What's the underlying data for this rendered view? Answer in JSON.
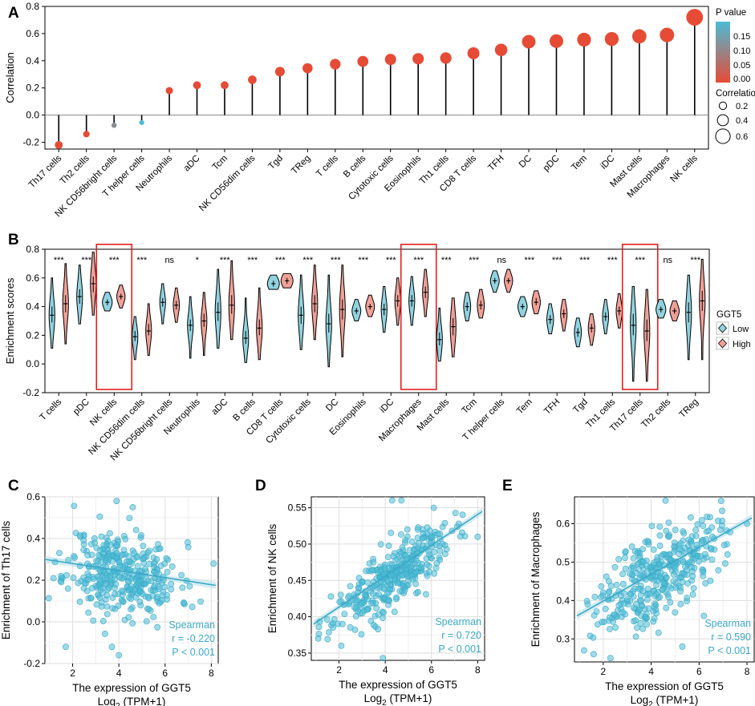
{
  "figure": {
    "panel_letters": [
      "A",
      "B",
      "C",
      "D",
      "E"
    ]
  },
  "chart_data": [
    {
      "panel": "A",
      "type": "lollipop",
      "ylabel": "Correlation",
      "ylim": [
        -0.25,
        0.8
      ],
      "yticks": [
        "-0.2",
        "0.0",
        "0.2",
        "0.4",
        "0.6",
        "0.8"
      ],
      "categories": [
        "Th17 cells",
        "Th2 cells",
        "NK CD56bright cells",
        "T helper cells",
        "Neutrophils",
        "aDC",
        "Tcm",
        "NK CD56dim cells",
        "Tgd",
        "TReg",
        "T cells",
        "B cells",
        "Cytotoxic cells",
        "Eosinophils",
        "Th1 cells",
        "CD8 T cells",
        "TFH",
        "DC",
        "pDC",
        "Tem",
        "iDC",
        "Mast cells",
        "Macrophages",
        "NK cells"
      ],
      "values": [
        -0.22,
        -0.14,
        -0.075,
        -0.055,
        0.18,
        0.22,
        0.22,
        0.26,
        0.32,
        0.345,
        0.375,
        0.395,
        0.41,
        0.415,
        0.42,
        0.455,
        0.48,
        0.54,
        0.545,
        0.555,
        0.56,
        0.58,
        0.59,
        0.72
      ],
      "pvalues": [
        0.0,
        0.0,
        0.12,
        0.2,
        0.0,
        0.0,
        0.0,
        0.0,
        0.0,
        0.0,
        0.0,
        0.0,
        0.0,
        0.0,
        0.0,
        0.0,
        0.0,
        0.0,
        0.0,
        0.0,
        0.0,
        0.0,
        0.0,
        0.0
      ],
      "legend_pvalue": {
        "title": "P value",
        "ticks": [
          "0.15",
          "0.10",
          "0.05",
          "0.00"
        ],
        "colors": {
          "low": "#E64B35",
          "high": "#4DBBD5"
        }
      },
      "legend_size": {
        "title": "Correlation",
        "ticks": [
          "0.2",
          "0.4",
          "0.6"
        ]
      }
    },
    {
      "panel": "B",
      "type": "violin",
      "ylabel": "Enrichment scores",
      "ylim": [
        -0.2,
        0.8
      ],
      "yticks": [
        "-0.2",
        "0.0",
        "0.2",
        "0.4",
        "0.6",
        "0.8"
      ],
      "legend": {
        "title": "GGT5",
        "items": [
          "Low",
          "High"
        ],
        "colors": [
          "#8FD3E0",
          "#F0A097"
        ]
      },
      "highlighted": [
        "NK cells",
        "Macrophages",
        "Th17 cells"
      ],
      "categories": [
        {
          "name": "T cells",
          "sig": "***",
          "low": {
            "median": 0.34,
            "q1": 0.29,
            "q3": 0.4,
            "min": 0.11,
            "max": 0.6
          },
          "high": {
            "median": 0.42,
            "q1": 0.36,
            "q3": 0.48,
            "min": 0.14,
            "max": 0.7
          }
        },
        {
          "name": "pDC",
          "sig": "***",
          "low": {
            "median": 0.47,
            "q1": 0.42,
            "q3": 0.52,
            "min": 0.28,
            "max": 0.69
          },
          "high": {
            "median": 0.56,
            "q1": 0.5,
            "q3": 0.61,
            "min": 0.34,
            "max": 0.78
          }
        },
        {
          "name": "NK cells",
          "sig": "***",
          "low": {
            "median": 0.43,
            "q1": 0.41,
            "q3": 0.45,
            "min": 0.37,
            "max": 0.5
          },
          "high": {
            "median": 0.47,
            "q1": 0.45,
            "q3": 0.49,
            "min": 0.39,
            "max": 0.55
          }
        },
        {
          "name": "NK CD56dim cells",
          "sig": "***",
          "low": {
            "median": 0.19,
            "q1": 0.16,
            "q3": 0.23,
            "min": 0.03,
            "max": 0.33
          },
          "high": {
            "median": 0.23,
            "q1": 0.2,
            "q3": 0.28,
            "min": 0.06,
            "max": 0.42
          }
        },
        {
          "name": "NK CD56bright cells",
          "sig": "ns",
          "low": {
            "median": 0.43,
            "q1": 0.4,
            "q3": 0.46,
            "min": 0.28,
            "max": 0.56
          },
          "high": {
            "median": 0.41,
            "q1": 0.38,
            "q3": 0.44,
            "min": 0.29,
            "max": 0.53
          }
        },
        {
          "name": "Neutrophils",
          "sig": "*",
          "low": {
            "median": 0.27,
            "q1": 0.23,
            "q3": 0.31,
            "min": 0.04,
            "max": 0.47
          },
          "high": {
            "median": 0.3,
            "q1": 0.26,
            "q3": 0.35,
            "min": 0.06,
            "max": 0.5
          }
        },
        {
          "name": "aDC",
          "sig": "***",
          "low": {
            "median": 0.36,
            "q1": 0.3,
            "q3": 0.43,
            "min": 0.11,
            "max": 0.66
          },
          "high": {
            "median": 0.41,
            "q1": 0.35,
            "q3": 0.48,
            "min": 0.17,
            "max": 0.72
          }
        },
        {
          "name": "B cells",
          "sig": "***",
          "low": {
            "median": 0.18,
            "q1": 0.14,
            "q3": 0.23,
            "min": 0.01,
            "max": 0.46
          },
          "high": {
            "median": 0.25,
            "q1": 0.2,
            "q3": 0.31,
            "min": 0.03,
            "max": 0.53
          }
        },
        {
          "name": "CD8 T cells",
          "sig": "***",
          "low": {
            "median": 0.56,
            "q1": 0.54,
            "q3": 0.58,
            "min": 0.52,
            "max": 0.62
          },
          "high": {
            "median": 0.58,
            "q1": 0.56,
            "q3": 0.6,
            "min": 0.53,
            "max": 0.63
          }
        },
        {
          "name": "Cytotoxic cells",
          "sig": "***",
          "low": {
            "median": 0.34,
            "q1": 0.28,
            "q3": 0.4,
            "min": 0.1,
            "max": 0.62
          },
          "high": {
            "median": 0.42,
            "q1": 0.36,
            "q3": 0.48,
            "min": 0.17,
            "max": 0.69
          }
        },
        {
          "name": "DC",
          "sig": "***",
          "low": {
            "median": 0.28,
            "q1": 0.22,
            "q3": 0.35,
            "min": -0.02,
            "max": 0.62
          },
          "high": {
            "median": 0.38,
            "q1": 0.31,
            "q3": 0.45,
            "min": 0.05,
            "max": 0.69
          }
        },
        {
          "name": "Eosinophils",
          "sig": "***",
          "low": {
            "median": 0.37,
            "q1": 0.35,
            "q3": 0.39,
            "min": 0.3,
            "max": 0.45
          },
          "high": {
            "median": 0.4,
            "q1": 0.38,
            "q3": 0.42,
            "min": 0.33,
            "max": 0.48
          }
        },
        {
          "name": "iDC",
          "sig": "***",
          "low": {
            "median": 0.38,
            "q1": 0.34,
            "q3": 0.42,
            "min": 0.22,
            "max": 0.54
          },
          "high": {
            "median": 0.44,
            "q1": 0.4,
            "q3": 0.48,
            "min": 0.27,
            "max": 0.6
          }
        },
        {
          "name": "Macrophages",
          "sig": "***",
          "low": {
            "median": 0.44,
            "q1": 0.4,
            "q3": 0.48,
            "min": 0.27,
            "max": 0.61
          },
          "high": {
            "median": 0.5,
            "q1": 0.46,
            "q3": 0.54,
            "min": 0.33,
            "max": 0.66
          }
        },
        {
          "name": "Mast cells",
          "sig": "***",
          "low": {
            "median": 0.17,
            "q1": 0.13,
            "q3": 0.22,
            "min": 0.02,
            "max": 0.39
          },
          "high": {
            "median": 0.26,
            "q1": 0.2,
            "q3": 0.32,
            "min": 0.05,
            "max": 0.46
          }
        },
        {
          "name": "Tcm",
          "sig": "***",
          "low": {
            "median": 0.4,
            "q1": 0.37,
            "q3": 0.43,
            "min": 0.3,
            "max": 0.5
          },
          "high": {
            "median": 0.41,
            "q1": 0.38,
            "q3": 0.44,
            "min": 0.32,
            "max": 0.52
          }
        },
        {
          "name": "T helper cells",
          "sig": "ns",
          "low": {
            "median": 0.58,
            "q1": 0.56,
            "q3": 0.6,
            "min": 0.5,
            "max": 0.65
          },
          "high": {
            "median": 0.58,
            "q1": 0.56,
            "q3": 0.6,
            "min": 0.5,
            "max": 0.66
          }
        },
        {
          "name": "Tem",
          "sig": "***",
          "low": {
            "median": 0.4,
            "q1": 0.38,
            "q3": 0.42,
            "min": 0.33,
            "max": 0.47
          },
          "high": {
            "median": 0.43,
            "q1": 0.41,
            "q3": 0.46,
            "min": 0.35,
            "max": 0.51
          }
        },
        {
          "name": "TFH",
          "sig": "***",
          "low": {
            "median": 0.31,
            "q1": 0.28,
            "q3": 0.34,
            "min": 0.21,
            "max": 0.42
          },
          "high": {
            "median": 0.35,
            "q1": 0.32,
            "q3": 0.38,
            "min": 0.23,
            "max": 0.45
          }
        },
        {
          "name": "Tgd",
          "sig": "***",
          "low": {
            "median": 0.22,
            "q1": 0.19,
            "q3": 0.25,
            "min": 0.12,
            "max": 0.32
          },
          "high": {
            "median": 0.25,
            "q1": 0.22,
            "q3": 0.28,
            "min": 0.13,
            "max": 0.35
          }
        },
        {
          "name": "Th1 cells",
          "sig": "***",
          "low": {
            "median": 0.33,
            "q1": 0.3,
            "q3": 0.36,
            "min": 0.21,
            "max": 0.45
          },
          "high": {
            "median": 0.37,
            "q1": 0.34,
            "q3": 0.4,
            "min": 0.25,
            "max": 0.49
          }
        },
        {
          "name": "Th17 cells",
          "sig": "***",
          "low": {
            "median": 0.27,
            "q1": 0.2,
            "q3": 0.35,
            "min": -0.12,
            "max": 0.54
          },
          "high": {
            "median": 0.23,
            "q1": 0.16,
            "q3": 0.31,
            "min": -0.12,
            "max": 0.52
          }
        },
        {
          "name": "Th2 cells",
          "sig": "ns",
          "low": {
            "median": 0.38,
            "q1": 0.36,
            "q3": 0.4,
            "min": 0.32,
            "max": 0.45
          },
          "high": {
            "median": 0.37,
            "q1": 0.35,
            "q3": 0.39,
            "min": 0.3,
            "max": 0.44
          }
        },
        {
          "name": "TReg",
          "sig": "***",
          "low": {
            "median": 0.36,
            "q1": 0.29,
            "q3": 0.43,
            "min": 0.03,
            "max": 0.62
          },
          "high": {
            "median": 0.44,
            "q1": 0.37,
            "q3": 0.51,
            "min": 0.03,
            "max": 0.73
          }
        }
      ]
    },
    {
      "panel": "C",
      "type": "scatter",
      "xlabel": "The expression of GGT5",
      "xlabel2_prefix": "Log",
      "xlabel2_sub": "2",
      "xlabel2_suffix": " (TPM+1)",
      "ylabel": "Enrichment of Th17 cells",
      "xlim": [
        0.8,
        8.3
      ],
      "ylim": [
        -0.2,
        0.6
      ],
      "xticks": [
        2,
        4,
        6,
        8
      ],
      "yticks": [
        -0.2,
        0.0,
        0.2,
        0.4,
        0.6
      ],
      "ytick_labels": [
        "-0.2",
        "0.0",
        "0.2",
        "0.4",
        "0.6"
      ],
      "stats": [
        "Spearman",
        "r = -0.220",
        "P < 0.001"
      ],
      "fit": {
        "x1": 0.8,
        "y1": 0.3,
        "x2": 8.2,
        "y2": 0.175
      },
      "n_points": 360,
      "x_center": 4.2,
      "x_sd": 1.2,
      "y_center": 0.23,
      "y_sd": 0.1,
      "slope": -0.017,
      "seed": 11,
      "outliers": [
        [
          3.9,
          0.58
        ],
        [
          4.6,
          0.55
        ],
        [
          8.1,
          0.28
        ],
        [
          1.5,
          0.22
        ],
        [
          1.7,
          -0.12
        ],
        [
          3.7,
          -0.12
        ],
        [
          4.0,
          -0.16
        ]
      ]
    },
    {
      "panel": "D",
      "type": "scatter",
      "xlabel": "The expression of GGT5",
      "xlabel2_prefix": "Log",
      "xlabel2_sub": "2",
      "xlabel2_suffix": " (TPM+1)",
      "ylabel": "Enrichment of NK cells",
      "xlim": [
        0.8,
        8.3
      ],
      "ylim": [
        0.34,
        0.565
      ],
      "xticks": [
        2,
        4,
        6,
        8
      ],
      "yticks": [
        0.35,
        0.4,
        0.45,
        0.5,
        0.55
      ],
      "ytick_labels": [
        "0.35",
        "0.40",
        "0.45",
        "0.50",
        "0.55"
      ],
      "stats": [
        "Spearman",
        "r = 0.720",
        "P < 0.001"
      ],
      "fit": {
        "x1": 0.9,
        "y1": 0.39,
        "x2": 8.2,
        "y2": 0.545
      },
      "n_points": 360,
      "x_center": 4.3,
      "x_sd": 1.25,
      "y_center": 0.455,
      "y_sd": 0.02,
      "slope": 0.0212,
      "seed": 23,
      "outliers": [
        [
          4.3,
          0.56
        ],
        [
          4.7,
          0.56
        ],
        [
          6.1,
          0.55
        ],
        [
          8.0,
          0.51
        ],
        [
          1.1,
          0.37
        ],
        [
          3.9,
          0.343
        ],
        [
          2.1,
          0.36
        ]
      ]
    },
    {
      "panel": "E",
      "type": "scatter",
      "xlabel": "The expression of GGT5",
      "xlabel2_prefix": "Log",
      "xlabel2_sub": "2",
      "xlabel2_suffix": " (TPM+1)",
      "ylabel": "Enrichment of Macrophages",
      "xlim": [
        0.8,
        8.3
      ],
      "ylim": [
        0.24,
        0.67
      ],
      "xticks": [
        2,
        4,
        6,
        8
      ],
      "yticks": [
        0.3,
        0.4,
        0.5,
        0.6
      ],
      "ytick_labels": [
        "0.3",
        "0.4",
        "0.5",
        "0.6"
      ],
      "stats": [
        "Spearman",
        "r = 0.590",
        "P < 0.001"
      ],
      "fit": {
        "x1": 0.9,
        "y1": 0.36,
        "x2": 8.2,
        "y2": 0.615
      },
      "n_points": 360,
      "x_center": 4.3,
      "x_sd": 1.25,
      "y_center": 0.47,
      "y_sd": 0.055,
      "slope": 0.035,
      "seed": 37,
      "outliers": [
        [
          4.6,
          0.66
        ],
        [
          8.0,
          0.6
        ],
        [
          1.2,
          0.27
        ],
        [
          1.6,
          0.26
        ],
        [
          2.3,
          0.25
        ],
        [
          5.3,
          0.28
        ],
        [
          6.2,
          0.36
        ]
      ]
    }
  ]
}
